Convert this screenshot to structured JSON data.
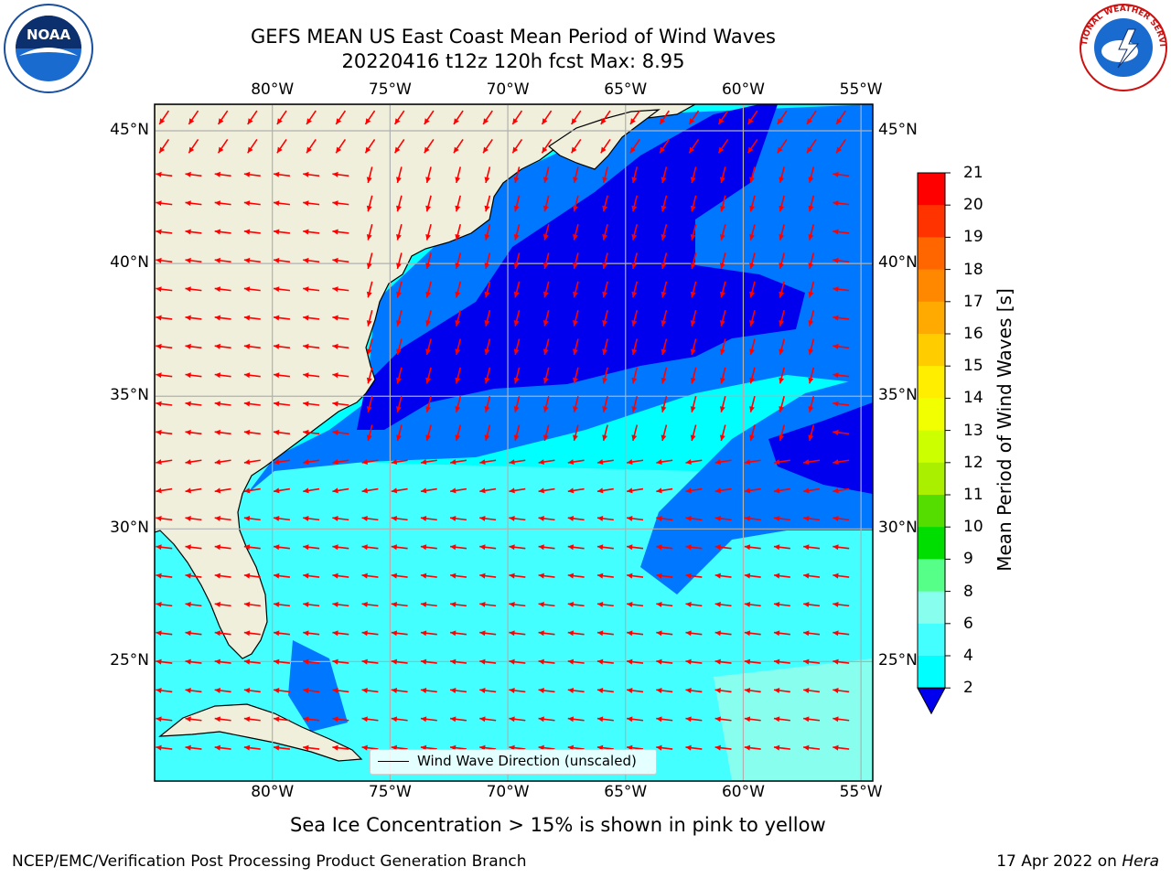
{
  "title": {
    "line1": "GEFS MEAN US East Coast Mean Period of Wind Waves",
    "line2": "20220416 t12z 120h fcst   Max: 8.95"
  },
  "map": {
    "lon_ticks": [
      "80°W",
      "75°W",
      "70°W",
      "65°W",
      "60°W",
      "55°W"
    ],
    "lat_ticks": [
      "45°N",
      "40°N",
      "35°N",
      "30°N",
      "25°N"
    ],
    "lon_tick_values": [
      -80,
      -75,
      -70,
      -65,
      -60,
      -55
    ],
    "lat_tick_values": [
      45,
      40,
      35,
      30,
      25
    ],
    "lon_range": [
      -85,
      -54.5
    ],
    "lat_range": [
      20.5,
      46
    ],
    "gridlines": true,
    "vector_color": "#ff0000",
    "land_color": "#efefdc",
    "dominant_wave_direction": "mostly from the east (westward) south of 33°N; from the north-northeast over the dark-blue shelf zone"
  },
  "colorbar": {
    "title": "Mean Period of Wind Waves [s]",
    "labels": [
      "21",
      "20",
      "19",
      "18",
      "17",
      "16",
      "15",
      "14",
      "13",
      "12",
      "11",
      "10",
      "9",
      "8",
      "6",
      "4",
      "2"
    ],
    "colors": [
      "#ff0000",
      "#ff3300",
      "#ff6600",
      "#ff8800",
      "#ffaa00",
      "#ffcc00",
      "#ffee00",
      "#f2ff00",
      "#ccff00",
      "#aaee00",
      "#55dd00",
      "#00dd00",
      "#55ff88",
      "#88ffee",
      "#44ffff",
      "#00ffff",
      "#0077ff"
    ],
    "extend_color": "#0000ee",
    "extend": "min"
  },
  "legend": {
    "label": "Wind Wave Direction (unscaled)"
  },
  "footnote": "Sea Ice Concentration > 15% is shown in pink to yellow",
  "credits": {
    "left": "NCEP/EMC/Verification Post Processing Product Generation Branch",
    "date": "17 Apr 2022 on",
    "machine": "Hera"
  },
  "logos": {
    "left": "NOAA",
    "right": "NATIONAL WEATHER SERVICE"
  }
}
